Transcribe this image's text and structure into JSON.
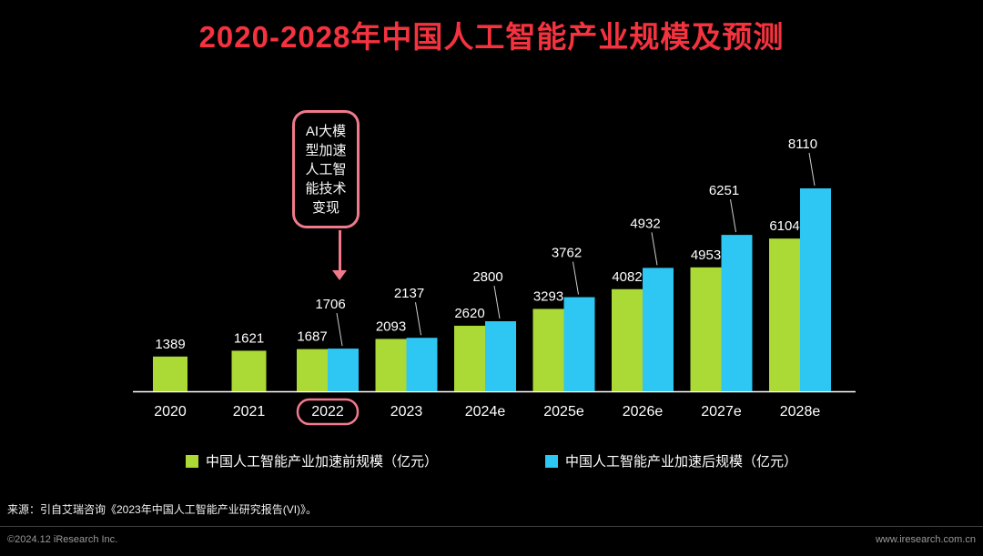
{
  "title": "2020-2028年中国人工智能产业规模及预测",
  "annotation": {
    "text": "AI大模型加速人工智能技术变现",
    "target_category": "2022"
  },
  "chart_data": {
    "type": "bar",
    "title": "2020-2028年中国人工智能产业规模及预测",
    "categories": [
      "2020",
      "2021",
      "2022",
      "2023",
      "2024e",
      "2025e",
      "2026e",
      "2027e",
      "2028e"
    ],
    "series": [
      {
        "name": "中国人工智能产业加速前规模（亿元）",
        "color": "#ABD936",
        "values": [
          1389,
          1621,
          1687,
          2093,
          2620,
          3293,
          4082,
          4953,
          6104
        ]
      },
      {
        "name": "中国人工智能产业加速后规模（亿元）",
        "color": "#2EC6F2",
        "values": [
          null,
          null,
          1706,
          2137,
          2800,
          3762,
          4932,
          6251,
          8110
        ]
      }
    ],
    "xlabel": "",
    "ylabel": "",
    "ylim": [
      0,
      8110
    ],
    "grid": false,
    "legend_position": "bottom",
    "highlight_category": "2022"
  },
  "source": "来源：引自艾瑞咨询《2023年中国人工智能产业研究报告(VI)》。",
  "footer": {
    "left": "©2024.12 iResearch Inc.",
    "right": "www.iresearch.com.cn"
  },
  "colors": {
    "title_red": "#F5333F",
    "pink": "#F0798C",
    "background": "#000000",
    "text": "#FFFFFF"
  }
}
